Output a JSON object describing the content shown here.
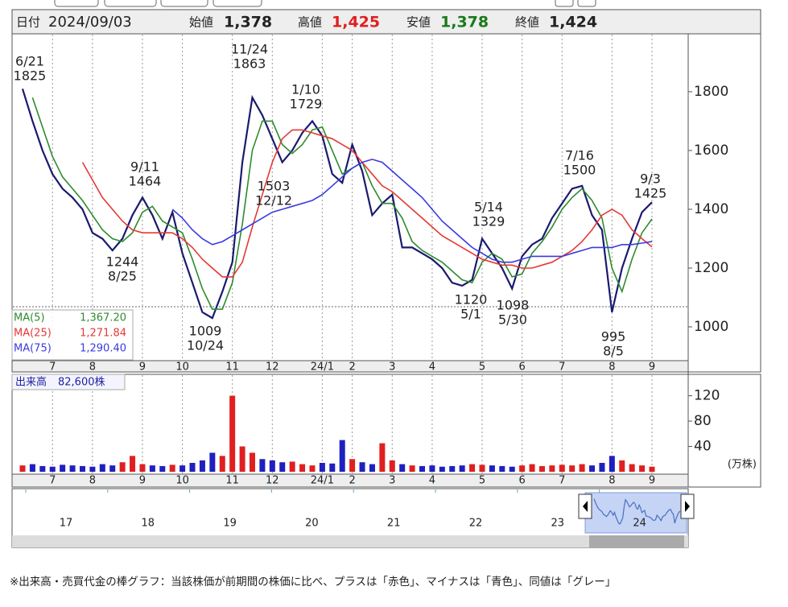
{
  "header": {
    "date_label": "日付",
    "date": "2024/09/03",
    "open_label": "始値",
    "open": "1,378",
    "high_label": "高値",
    "high": "1,425",
    "low_label": "安値",
    "low": "1,378",
    "close_label": "終値",
    "close": "1,424"
  },
  "chart_data": [
    {
      "type": "line",
      "categories": [
        null,
        null,
        null,
        "7",
        null,
        null,
        null,
        "8",
        null,
        null,
        null,
        null,
        "9",
        null,
        null,
        null,
        "10",
        null,
        null,
        null,
        null,
        "11",
        null,
        null,
        null,
        "12",
        null,
        null,
        null,
        null,
        "24/1",
        null,
        null,
        "2",
        null,
        null,
        null,
        "3",
        null,
        null,
        null,
        "4",
        null,
        null,
        null,
        null,
        "5",
        null,
        null,
        null,
        "6",
        null,
        null,
        null,
        "7",
        null,
        null,
        null,
        null,
        "8",
        null,
        null,
        null,
        "9"
      ],
      "ylim": [
        885,
        1997
      ],
      "yticks": [
        1000,
        1200,
        1400,
        1600,
        1800
      ],
      "grid": "x",
      "series": [
        {
          "name": "終値",
          "color": "#1a1a6e",
          "values": [
            1810,
            1700,
            1600,
            1520,
            1470,
            1440,
            1400,
            1320,
            1300,
            1260,
            1300,
            1380,
            1440,
            1380,
            1300,
            1390,
            1250,
            1150,
            1050,
            1030,
            1120,
            1220,
            1560,
            1780,
            1720,
            1640,
            1560,
            1600,
            1660,
            1700,
            1650,
            1520,
            1490,
            1620,
            1530,
            1380,
            1420,
            1450,
            1270,
            1270,
            1250,
            1230,
            1200,
            1150,
            1140,
            1160,
            1300,
            1250,
            1200,
            1130,
            1240,
            1280,
            1300,
            1370,
            1420,
            1470,
            1480,
            1380,
            1330,
            1050,
            1200,
            1300,
            1390,
            1424
          ]
        },
        {
          "name": "MA(5)",
          "legend_value": "1,367.20",
          "color": "#2e8b2e",
          "values": [
            null,
            1780,
            1680,
            1580,
            1510,
            1470,
            1430,
            1380,
            1330,
            1300,
            1290,
            1320,
            1390,
            1410,
            1360,
            1340,
            1320,
            1230,
            1130,
            1060,
            1060,
            1150,
            1350,
            1600,
            1700,
            1700,
            1620,
            1590,
            1620,
            1670,
            1680,
            1600,
            1520,
            1540,
            1560,
            1480,
            1420,
            1420,
            1370,
            1290,
            1260,
            1240,
            1220,
            1190,
            1160,
            1150,
            1220,
            1250,
            1230,
            1170,
            1180,
            1250,
            1290,
            1340,
            1400,
            1440,
            1470,
            1430,
            1370,
            1200,
            1120,
            1230,
            1320,
            1367
          ]
        },
        {
          "name": "MA(25)",
          "legend_value": "1,271.84",
          "color": "#e53935",
          "values": [
            null,
            null,
            null,
            null,
            null,
            null,
            1560,
            1500,
            1440,
            1400,
            1360,
            1330,
            1320,
            1320,
            1320,
            1320,
            1300,
            1270,
            1230,
            1200,
            1170,
            1170,
            1220,
            1340,
            1450,
            1560,
            1640,
            1670,
            1670,
            1660,
            1650,
            1640,
            1620,
            1600,
            1560,
            1520,
            1480,
            1460,
            1430,
            1400,
            1370,
            1340,
            1310,
            1290,
            1270,
            1250,
            1230,
            1220,
            1210,
            1210,
            1200,
            1200,
            1210,
            1220,
            1240,
            1260,
            1290,
            1330,
            1380,
            1400,
            1380,
            1330,
            1300,
            1272
          ]
        },
        {
          "name": "MA(75)",
          "legend_value": "1,290.40",
          "color": "#3a3ae0",
          "values": [
            null,
            null,
            null,
            null,
            null,
            null,
            null,
            null,
            null,
            null,
            null,
            null,
            null,
            null,
            null,
            1400,
            1370,
            1330,
            1300,
            1280,
            1290,
            1310,
            1330,
            1350,
            1370,
            1390,
            1400,
            1410,
            1420,
            1430,
            1450,
            1480,
            1510,
            1540,
            1560,
            1570,
            1560,
            1530,
            1500,
            1470,
            1440,
            1400,
            1360,
            1330,
            1300,
            1270,
            1250,
            1230,
            1220,
            1220,
            1230,
            1240,
            1240,
            1240,
            1240,
            1250,
            1260,
            1270,
            1270,
            1270,
            1280,
            1280,
            1285,
            1290
          ]
        }
      ],
      "annotations": [
        {
          "top": "6/21",
          "bottom": "1825"
        },
        {
          "top": "11/24",
          "bottom": "1863"
        },
        {
          "top": "1/10",
          "bottom": "1729"
        },
        {
          "top": "9/11",
          "bottom": "1464"
        },
        {
          "top": "1503",
          "bottom": "12/12"
        },
        {
          "top": "1244",
          "bottom": "8/25"
        },
        {
          "top": "1009",
          "bottom": "10/24"
        },
        {
          "top": "5/14",
          "bottom": "1329"
        },
        {
          "top": "1120",
          "bottom": "5/1"
        },
        {
          "top": "1098",
          "bottom": "5/30"
        },
        {
          "top": "7/16",
          "bottom": "1500"
        },
        {
          "top": "995",
          "bottom": "8/5"
        },
        {
          "top": "9/3",
          "bottom": "1425"
        }
      ]
    },
    {
      "type": "bar",
      "title": "出来高",
      "latest": "82,600株",
      "unit": "(万株)",
      "up_color": "#e02020",
      "down_color": "#2020c0",
      "ylim": [
        0,
        150
      ],
      "yticks": [
        40,
        80,
        120
      ],
      "values": [
        10,
        12,
        9,
        8,
        11,
        10,
        9,
        8,
        12,
        10,
        15,
        25,
        12,
        10,
        9,
        11,
        10,
        14,
        18,
        30,
        25,
        120,
        40,
        30,
        20,
        18,
        15,
        16,
        12,
        10,
        14,
        13,
        50,
        20,
        15,
        12,
        45,
        18,
        12,
        10,
        9,
        10,
        8,
        9,
        10,
        12,
        11,
        10,
        9,
        8,
        10,
        12,
        9,
        10,
        11,
        10,
        12,
        10,
        14,
        25,
        18,
        12,
        10,
        8
      ]
    }
  ],
  "navigator": {
    "years": [
      "17",
      "18",
      "19",
      "20",
      "21",
      "22",
      "23",
      "24"
    ]
  },
  "note": "※出来高・売買代金の棒グラフ：当該株価が前期間の株価に比べ、プラスは「赤色」、マイナスは「青色」、同値は「グレー」"
}
